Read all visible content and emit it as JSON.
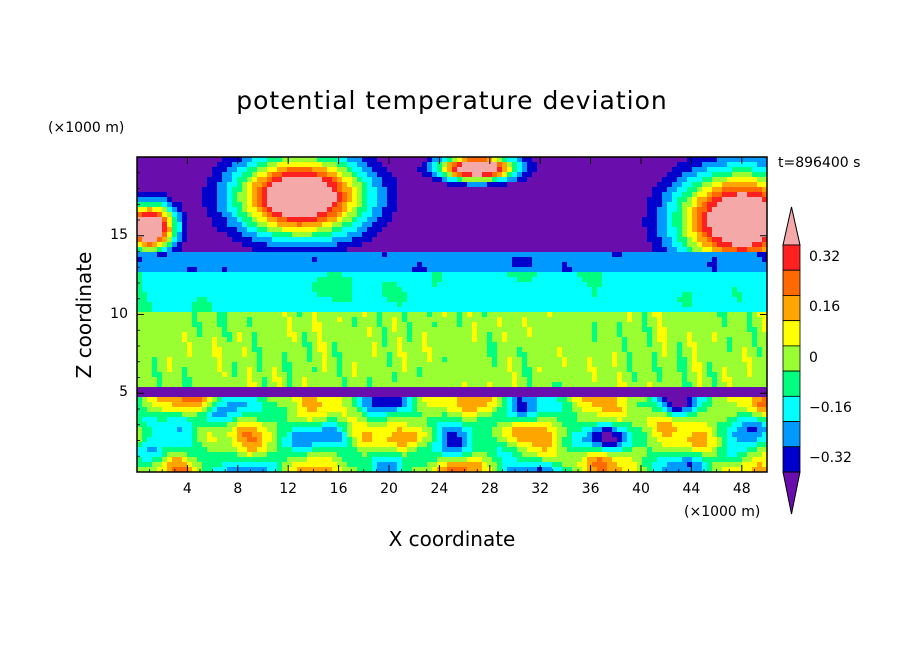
{
  "chart_data": {
    "type": "heatmap",
    "title": "potential temperature deviation",
    "xlabel": "X coordinate",
    "ylabel": "Z coordinate",
    "x_unit": "(×1000 m)",
    "y_unit": "(×1000 m)",
    "time_label": "t=896400 s",
    "xlim": [
      0,
      50
    ],
    "ylim": [
      0,
      20
    ],
    "x_ticks": [
      4,
      8,
      12,
      16,
      20,
      24,
      28,
      32,
      36,
      40,
      44,
      48
    ],
    "y_ticks": [
      5,
      10,
      15
    ],
    "colorbar": {
      "levels": [
        -0.4,
        -0.32,
        -0.24,
        -0.16,
        -0.08,
        0,
        0.08,
        0.16,
        0.24,
        0.32,
        0.4
      ],
      "labels": [
        "0.32",
        "0.16",
        "0",
        "−0.16",
        "−0.32"
      ],
      "label_values": [
        0.32,
        0.16,
        0,
        -0.16,
        -0.32
      ],
      "colors_top_to_bottom": [
        "#f5a8a8",
        "#ff2020",
        "#ff6a00",
        "#ffa500",
        "#ffff00",
        "#99ff33",
        "#00ff7f",
        "#00ffff",
        "#0099ff",
        "#0000cc",
        "#6a0dad"
      ],
      "extend": "both"
    },
    "bands": [
      {
        "z_from": 14.0,
        "z_to": 20,
        "dominant": -0.4
      },
      {
        "z_from": 12.6,
        "z_to": 14.0,
        "dominant": -0.2
      },
      {
        "z_from": 10.2,
        "z_to": 12.6,
        "dominant": -0.08
      },
      {
        "z_from": 5.4,
        "z_to": 10.2,
        "dominant": 0.04
      },
      {
        "z_from": 4.7,
        "z_to": 5.4,
        "dominant": -0.36
      },
      {
        "z_from": 0,
        "z_to": 4.7,
        "dominant": 0.0
      }
    ]
  }
}
